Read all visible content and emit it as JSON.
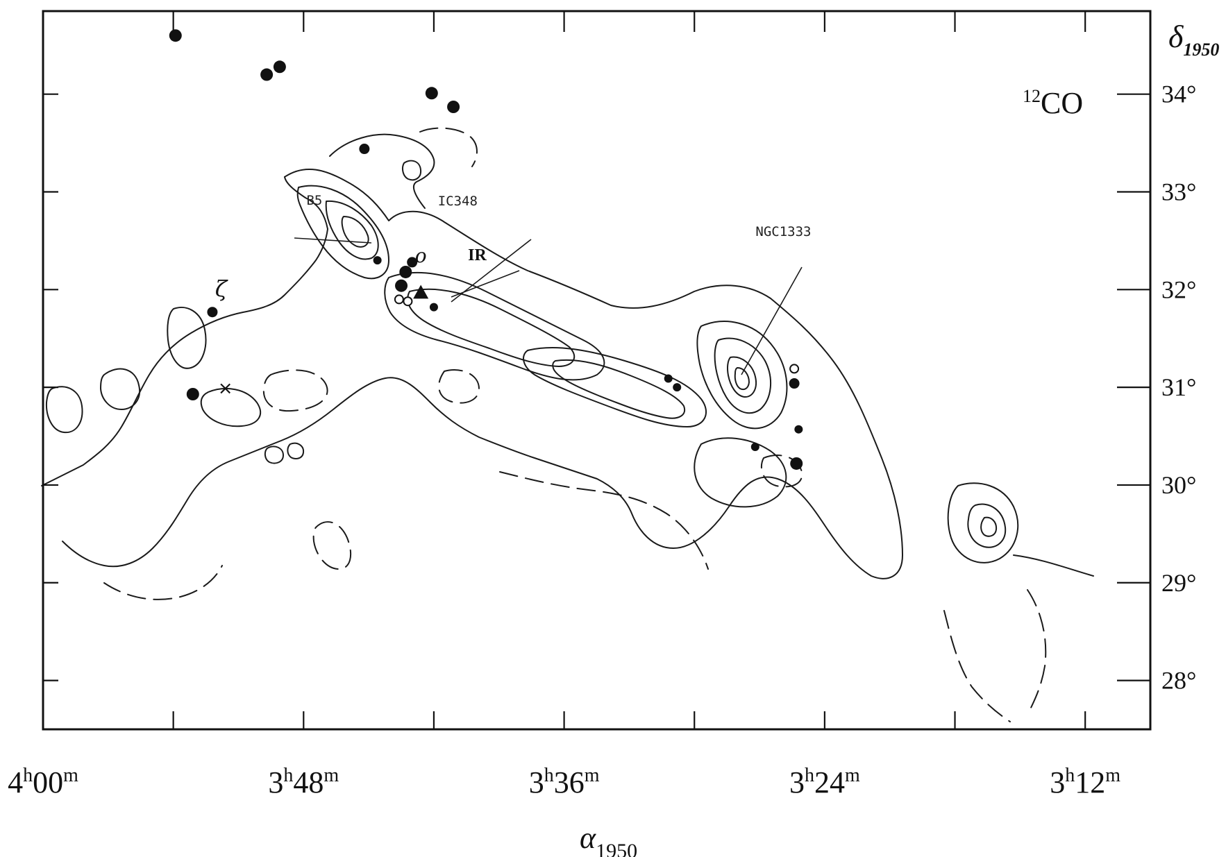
{
  "chart_data": {
    "type": "contour-map",
    "tracer": {
      "iso": "12",
      "molecule": "CO"
    },
    "xaxis": {
      "label_symbol": "α",
      "label_sub": "1950",
      "range_ra_minutes": [
        240,
        189
      ],
      "ticks": [
        {
          "h": "4",
          "m": "00",
          "ra_minutes": 240
        },
        {
          "h": "3",
          "m": "48",
          "ra_minutes": 228
        },
        {
          "h": "3",
          "m": "36",
          "ra_minutes": 216
        },
        {
          "h": "3",
          "m": "24",
          "ra_minutes": 204
        },
        {
          "h": "3",
          "m": "12",
          "ra_minutes": 192
        }
      ]
    },
    "yaxis": {
      "label_symbol": "δ",
      "label_sub": "1950",
      "range_deg": [
        27.5,
        34.85
      ],
      "ticks": [
        {
          "label": "34°",
          "deg": 34
        },
        {
          "label": "33°",
          "deg": 33
        },
        {
          "label": "32°",
          "deg": 32
        },
        {
          "label": "31°",
          "deg": 31
        },
        {
          "label": "30°",
          "deg": 30
        },
        {
          "label": "29°",
          "deg": 29
        },
        {
          "label": "28°",
          "deg": 28
        }
      ]
    },
    "labels": [
      {
        "text": "B5",
        "ra_minutes": 227.5,
        "dec": 32.87
      },
      {
        "text": "IC348",
        "ra_minutes": 220.9,
        "dec": 32.86
      },
      {
        "text": "IR",
        "ra_minutes": 220.0,
        "dec": 32.3
      },
      {
        "text": "NGC1333",
        "ra_minutes": 205.9,
        "dec": 32.55
      },
      {
        "text": "ζ",
        "ra_minutes": 231.8,
        "dec": 31.93
      },
      {
        "text": "o",
        "ra_minutes": 222.6,
        "dec": 32.28
      },
      {
        "text": "×",
        "ra_minutes": 231.6,
        "dec": 30.93
      }
    ],
    "stars": [
      {
        "ra_minutes": 233.9,
        "dec": 34.6,
        "size": "large"
      },
      {
        "ra_minutes": 229.7,
        "dec": 34.2,
        "size": "large"
      },
      {
        "ra_minutes": 229.1,
        "dec": 34.28,
        "size": "large"
      },
      {
        "ra_minutes": 222.1,
        "dec": 34.01,
        "size": "large"
      },
      {
        "ra_minutes": 221.1,
        "dec": 33.87,
        "size": "large"
      },
      {
        "ra_minutes": 225.2,
        "dec": 33.44,
        "size": "medium"
      },
      {
        "ra_minutes": 223.0,
        "dec": 32.28,
        "size": "medium"
      },
      {
        "ra_minutes": 224.6,
        "dec": 32.3,
        "size": "small"
      },
      {
        "ra_minutes": 223.3,
        "dec": 32.18,
        "size": "large"
      },
      {
        "ra_minutes": 223.5,
        "dec": 32.04,
        "size": "large"
      },
      {
        "ra_minutes": 222.0,
        "dec": 31.82,
        "size": "small"
      },
      {
        "ra_minutes": 232.2,
        "dec": 31.77,
        "size": "medium"
      },
      {
        "ra_minutes": 233.1,
        "dec": 30.93,
        "size": "large"
      },
      {
        "ra_minutes": 211.2,
        "dec": 31.09,
        "size": "small"
      },
      {
        "ra_minutes": 210.8,
        "dec": 31.0,
        "size": "small"
      },
      {
        "ra_minutes": 205.4,
        "dec": 31.04,
        "size": "medium"
      },
      {
        "ra_minutes": 205.2,
        "dec": 30.57,
        "size": "small"
      },
      {
        "ra_minutes": 207.2,
        "dec": 30.39,
        "size": "small"
      },
      {
        "ra_minutes": 205.3,
        "dec": 30.22,
        "size": "large"
      }
    ],
    "open_markers": [
      {
        "ra_minutes": 223.6,
        "dec": 31.9
      },
      {
        "ra_minutes": 223.2,
        "dec": 31.88
      },
      {
        "ra_minutes": 205.4,
        "dec": 31.19
      }
    ],
    "triangles": [
      {
        "ra_minutes": 222.6,
        "dec": 31.97
      }
    ],
    "grid": false,
    "legend": "none"
  }
}
